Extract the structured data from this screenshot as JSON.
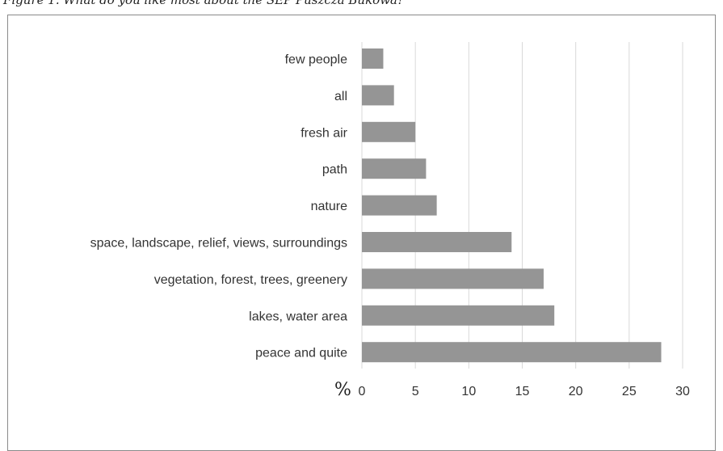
{
  "caption": "Figure 1. What do you like most about the SEP Puszcza Bukowa?",
  "chart_data": {
    "type": "bar",
    "orientation": "horizontal",
    "categories": [
      "few people",
      "all",
      "fresh air",
      "path",
      "nature",
      "space, landscape, relief, views, surroundings",
      "vegetation, forest, trees, greenery",
      "lakes, water area",
      "peace and quite"
    ],
    "values": [
      2,
      3,
      5,
      6,
      7,
      14,
      17,
      18,
      28
    ],
    "xlabel": "%",
    "xlim": [
      0,
      30
    ],
    "xticks": [
      0,
      5,
      10,
      15,
      20,
      25,
      30
    ],
    "grid": true,
    "bar_color": "#959595",
    "grid_color": "#d9d9d9"
  }
}
